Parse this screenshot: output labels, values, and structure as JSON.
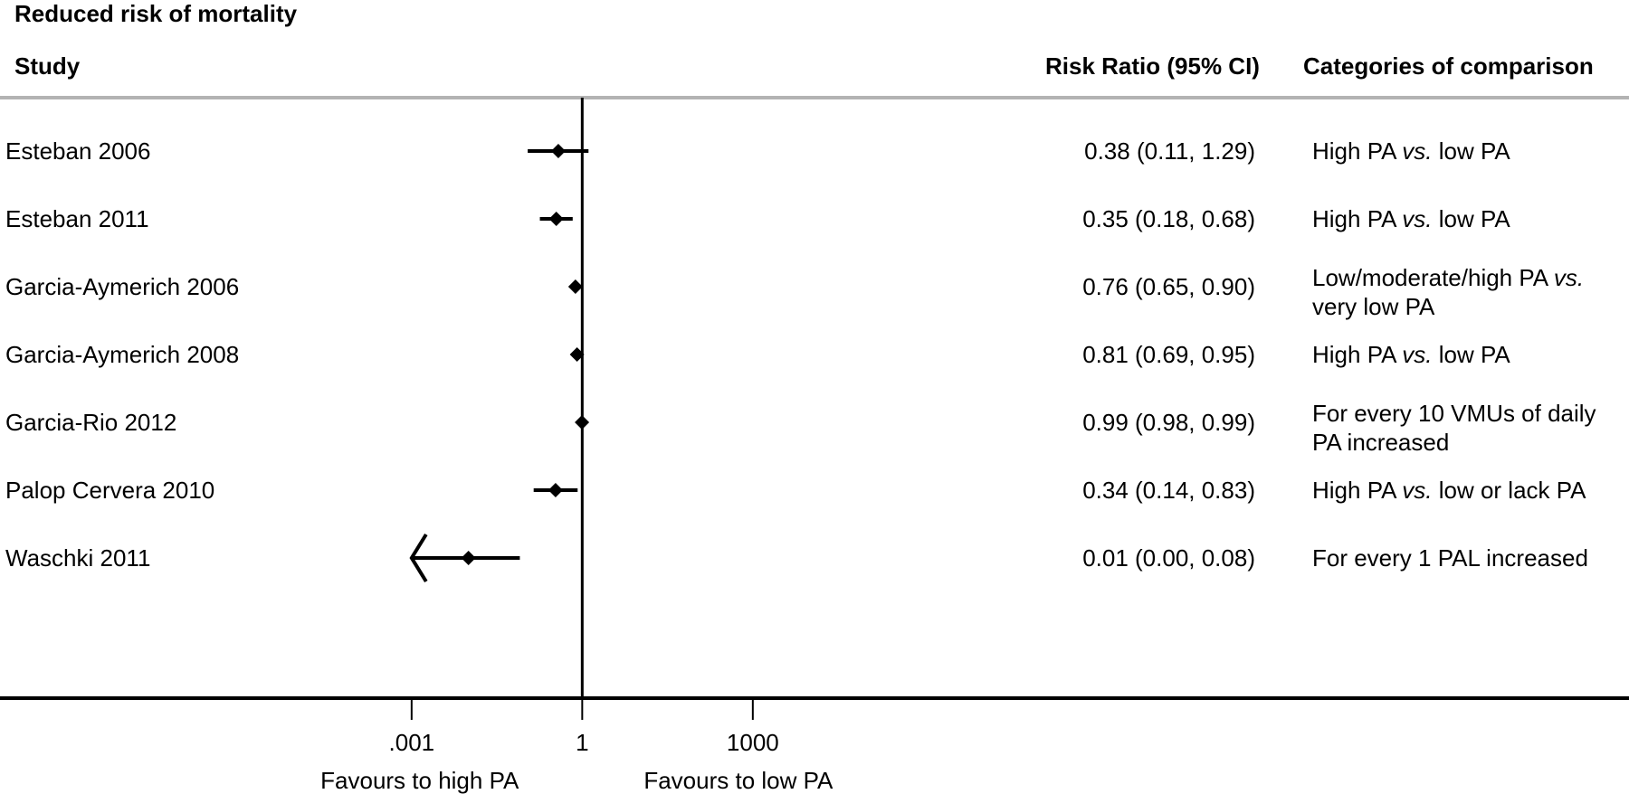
{
  "chart_data": {
    "type": "forest",
    "title": "Reduced risk of mortality",
    "columns": {
      "study": "Study",
      "risk_ratio": "Risk Ratio (95% CI)",
      "categories": "Categories of comparison"
    },
    "x_scale": "log",
    "x_ticks": [
      {
        "value": 0.001,
        "label": ".001"
      },
      {
        "value": 1,
        "label": "1"
      },
      {
        "value": 1000,
        "label": "1000"
      }
    ],
    "xlim": [
      0.0001,
      100000000
    ],
    "reference_line": 1,
    "favours_left": "Favours to high PA",
    "favours_right": "Favours to low PA",
    "studies": [
      {
        "name": "Esteban 2006",
        "rr": 0.38,
        "lower": 0.11,
        "upper": 1.29,
        "ci_text": "0.38 (0.11, 1.29)",
        "category": [
          "High PA ",
          "vs.",
          " low PA"
        ]
      },
      {
        "name": "Esteban 2011",
        "rr": 0.35,
        "lower": 0.18,
        "upper": 0.68,
        "ci_text": "0.35 (0.18, 0.68)",
        "category": [
          "High PA ",
          "vs.",
          " low PA"
        ]
      },
      {
        "name": "Garcia-Aymerich 2006",
        "rr": 0.76,
        "lower": 0.65,
        "upper": 0.9,
        "ci_text": "0.76 (0.65, 0.90)",
        "category": [
          "Low/moderate/high PA ",
          "vs.",
          ""
        ],
        "category_line2": "very low PA"
      },
      {
        "name": "Garcia-Aymerich 2008",
        "rr": 0.81,
        "lower": 0.69,
        "upper": 0.95,
        "ci_text": "0.81 (0.69, 0.95)",
        "category": [
          "High PA ",
          "vs.",
          " low PA"
        ]
      },
      {
        "name": "Garcia-Rio 2012",
        "rr": 0.99,
        "lower": 0.98,
        "upper": 0.99,
        "ci_text": "0.99 (0.98, 0.99)",
        "category": [
          "For every 10 VMUs of daily",
          "",
          ""
        ],
        "category_line2": "PA increased"
      },
      {
        "name": "Palop Cervera 2010",
        "rr": 0.34,
        "lower": 0.14,
        "upper": 0.83,
        "ci_text": "0.34 (0.14, 0.83)",
        "category": [
          "High PA ",
          "vs.",
          " low or lack PA"
        ]
      },
      {
        "name": "Waschki 2011",
        "rr": 0.01,
        "lower": 0.0,
        "upper": 0.08,
        "ci_text": "0.01 (0.00, 0.08)",
        "category": [
          "For every 1 PAL increased",
          "",
          ""
        ],
        "lower_truncated": true
      }
    ]
  }
}
